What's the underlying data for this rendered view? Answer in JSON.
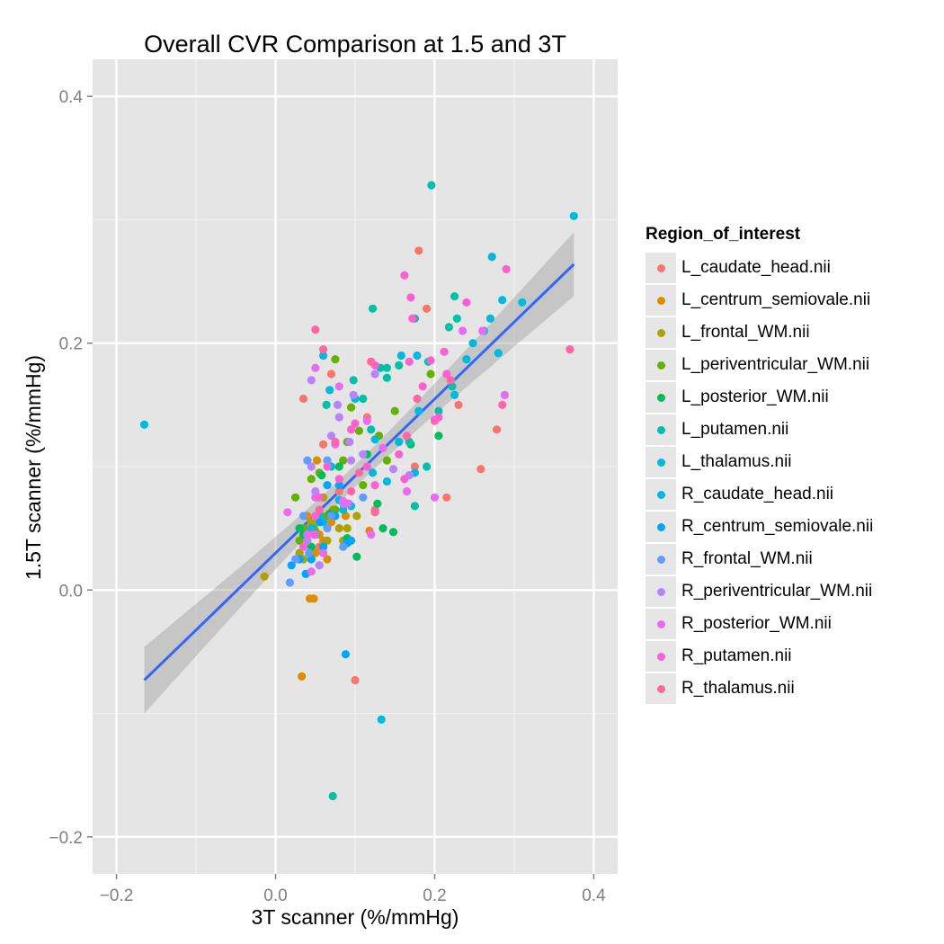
{
  "chart_data": {
    "type": "scatter",
    "title": "Overall CVR Comparison at 1.5 and 3T",
    "xlabel": "3T scanner (%/mmHg)",
    "ylabel": "1.5T scanner (%/mmHg)",
    "xlim": [
      -0.23,
      0.43
    ],
    "ylim": [
      -0.23,
      0.43
    ],
    "x_ticks": [
      -0.2,
      0.0,
      0.2,
      0.4
    ],
    "x_tick_labels": [
      "−0.2",
      "0.0",
      "0.2",
      "0.4"
    ],
    "y_ticks": [
      -0.2,
      0.0,
      0.2,
      0.4
    ],
    "y_tick_labels": [
      "−0.2",
      "0.0",
      "0.2",
      "0.4"
    ],
    "grid": true,
    "legend": {
      "title": "Region_of_interest",
      "position": "right"
    },
    "fit": {
      "method": "linear regression with confidence band",
      "x_range": [
        -0.165,
        0.375
      ],
      "line_y": [
        -0.073,
        0.264
      ],
      "band_low": [
        -0.1,
        0.238
      ],
      "band_high": [
        -0.046,
        0.29
      ],
      "color": "#3366FF"
    },
    "series": [
      {
        "name": "L_caudate_head.nii",
        "color": "#F8766D",
        "points": [
          [
            0.18,
            0.275
          ],
          [
            0.19,
            0.228
          ],
          [
            0.175,
            0.1
          ],
          [
            0.23,
            0.15
          ],
          [
            0.215,
            0.075
          ],
          [
            0.258,
            0.098
          ],
          [
            0.278,
            0.13
          ],
          [
            0.2,
            0.137
          ],
          [
            0.1,
            -0.073
          ],
          [
            0.07,
            0.175
          ],
          [
            0.06,
            0.118
          ],
          [
            0.035,
            0.155
          ],
          [
            0.115,
            0.14
          ],
          [
            0.125,
            0.065
          ],
          [
            0.042,
            0.05
          ],
          [
            0.08,
            0.08
          ],
          [
            0.055,
            0.035
          ]
        ]
      },
      {
        "name": "L_centrum_semiovale.nii",
        "color": "#DB8E00",
        "points": [
          [
            0.043,
            -0.007
          ],
          [
            0.048,
            -0.007
          ],
          [
            0.033,
            -0.07
          ],
          [
            0.055,
            0.045
          ],
          [
            0.06,
            0.04
          ],
          [
            0.05,
            0.03
          ],
          [
            0.07,
            0.055
          ],
          [
            0.088,
            0.06
          ],
          [
            0.118,
            0.048
          ],
          [
            0.04,
            0.06
          ],
          [
            0.065,
            0.025
          ],
          [
            0.052,
            0.105
          ]
        ]
      },
      {
        "name": "L_frontal_WM.nii",
        "color": "#AEA200",
        "points": [
          [
            -0.014,
            0.011
          ],
          [
            0.03,
            0.03
          ],
          [
            0.045,
            0.055
          ],
          [
            0.065,
            0.04
          ],
          [
            0.058,
            0.06
          ],
          [
            0.072,
            0.065
          ],
          [
            0.085,
            0.04
          ],
          [
            0.09,
            0.05
          ],
          [
            0.102,
            0.06
          ],
          [
            0.05,
            0.048
          ],
          [
            0.055,
            0.02
          ],
          [
            0.035,
            0.025
          ],
          [
            0.06,
            0.075
          ],
          [
            0.08,
            0.05
          ]
        ]
      },
      {
        "name": "L_periventricular_WM.nii",
        "color": "#64B200",
        "points": [
          [
            0.075,
            0.187
          ],
          [
            0.095,
            0.148
          ],
          [
            0.105,
            0.129
          ],
          [
            0.15,
            0.145
          ],
          [
            0.195,
            0.175
          ],
          [
            0.085,
            0.105
          ],
          [
            0.045,
            0.09
          ],
          [
            0.055,
            0.095
          ],
          [
            0.025,
            0.075
          ],
          [
            0.035,
            0.05
          ],
          [
            0.065,
            0.06
          ],
          [
            0.13,
            0.125
          ],
          [
            0.09,
            0.12
          ],
          [
            0.14,
            0.105
          ],
          [
            0.11,
            0.085
          ],
          [
            0.03,
            0.04
          ],
          [
            0.048,
            0.05
          ],
          [
            0.075,
            0.065
          ]
        ]
      },
      {
        "name": "L_posterior_WM.nii",
        "color": "#00BD5C",
        "points": [
          [
            0.03,
            0.05
          ],
          [
            0.058,
            0.093
          ],
          [
            0.102,
            0.027
          ],
          [
            0.135,
            0.05
          ],
          [
            0.148,
            0.047
          ],
          [
            0.128,
            0.07
          ],
          [
            0.09,
            0.042
          ],
          [
            0.068,
            0.062
          ],
          [
            0.205,
            0.125
          ],
          [
            0.17,
            0.118
          ],
          [
            0.08,
            0.1
          ],
          [
            0.045,
            0.035
          ],
          [
            0.035,
            0.045
          ],
          [
            0.115,
            0.11
          ]
        ]
      },
      {
        "name": "L_putamen.nii",
        "color": "#00C1A7",
        "points": [
          [
            0.196,
            0.328
          ],
          [
            0.072,
            -0.167
          ],
          [
            0.225,
            0.238
          ],
          [
            0.218,
            0.213
          ],
          [
            0.205,
            0.145
          ],
          [
            0.228,
            0.22
          ],
          [
            0.192,
            0.185
          ],
          [
            0.122,
            0.228
          ],
          [
            0.175,
            0.22
          ],
          [
            0.132,
            0.18
          ],
          [
            0.14,
            0.172
          ],
          [
            0.155,
            0.182
          ],
          [
            0.168,
            0.12
          ],
          [
            0.175,
            0.068
          ],
          [
            0.19,
            0.1
          ],
          [
            0.222,
            0.165
          ],
          [
            0.064,
            0.15
          ],
          [
            0.098,
            0.17
          ],
          [
            0.12,
            0.13
          ],
          [
            0.14,
            0.18
          ],
          [
            0.11,
            0.155
          ]
        ]
      },
      {
        "name": "L_thalamus.nii",
        "color": "#00BADE",
        "points": [
          [
            0.375,
            0.303
          ],
          [
            0.272,
            0.27
          ],
          [
            0.31,
            0.233
          ],
          [
            0.285,
            0.235
          ],
          [
            0.27,
            0.22
          ],
          [
            0.262,
            0.21
          ],
          [
            0.248,
            0.2
          ],
          [
            0.24,
            0.187
          ],
          [
            0.28,
            0.192
          ],
          [
            0.225,
            0.158
          ],
          [
            0.178,
            0.19
          ],
          [
            0.158,
            0.19
          ],
          [
            0.06,
            0.19
          ],
          [
            0.125,
            0.122
          ],
          [
            0.18,
            0.145
          ],
          [
            0.175,
            0.095
          ],
          [
            0.155,
            0.12
          ],
          [
            0.06,
            0.055
          ],
          [
            0.04,
            0.04
          ],
          [
            0.085,
            0.065
          ]
        ]
      },
      {
        "name": "R_caudate_head.nii",
        "color": "#00BADE",
        "points": [
          [
            -0.165,
            0.134
          ],
          [
            0.133,
            -0.105
          ],
          [
            0.068,
            0.162
          ],
          [
            0.1,
            0.155
          ],
          [
            0.122,
            0.095
          ],
          [
            0.07,
            0.1
          ],
          [
            0.055,
            0.06
          ],
          [
            0.08,
            0.073
          ],
          [
            0.045,
            0.05
          ],
          [
            0.06,
            0.035
          ],
          [
            0.14,
            0.088
          ],
          [
            0.095,
            0.068
          ]
        ]
      },
      {
        "name": "R_centrum_semiovale.nii",
        "color": "#00A5FF",
        "points": [
          [
            0.088,
            -0.052
          ],
          [
            0.02,
            0.02
          ],
          [
            0.038,
            0.013
          ],
          [
            0.045,
            0.025
          ],
          [
            0.03,
            0.025
          ],
          [
            0.06,
            0.035
          ],
          [
            0.075,
            0.06
          ],
          [
            0.09,
            0.038
          ],
          [
            0.055,
            0.055
          ],
          [
            0.095,
            0.04
          ],
          [
            0.08,
            0.085
          ],
          [
            0.065,
            0.085
          ]
        ]
      },
      {
        "name": "R_frontal_WM.nii",
        "color": "#619CFF",
        "points": [
          [
            0.018,
            0.006
          ],
          [
            0.025,
            0.025
          ],
          [
            0.042,
            0.03
          ],
          [
            0.05,
            0.045
          ],
          [
            0.065,
            0.05
          ],
          [
            0.07,
            0.06
          ],
          [
            0.085,
            0.035
          ],
          [
            0.092,
            0.07
          ],
          [
            0.065,
            0.105
          ],
          [
            0.04,
            0.105
          ],
          [
            0.035,
            0.06
          ],
          [
            0.11,
            0.075
          ]
        ]
      },
      {
        "name": "R_periventricular_WM.nii",
        "color": "#B983FF",
        "points": [
          [
            0.045,
            0.17
          ],
          [
            0.078,
            0.15
          ],
          [
            0.08,
            0.14
          ],
          [
            0.098,
            0.158
          ],
          [
            0.125,
            0.175
          ],
          [
            0.148,
            0.098
          ],
          [
            0.168,
            0.093
          ],
          [
            0.093,
            0.12
          ],
          [
            0.11,
            0.11
          ],
          [
            0.07,
            0.125
          ],
          [
            0.05,
            0.08
          ],
          [
            0.085,
            0.07
          ],
          [
            0.04,
            0.04
          ],
          [
            0.055,
            0.02
          ],
          [
            0.045,
            0.1
          ],
          [
            0.095,
            0.105
          ]
        ]
      },
      {
        "name": "R_posterior_WM.nii",
        "color": "#E76BF3",
        "points": [
          [
            0.015,
            0.063
          ],
          [
            0.05,
            0.18
          ],
          [
            0.08,
            0.165
          ],
          [
            0.165,
            0.08
          ],
          [
            0.2,
            0.075
          ],
          [
            0.235,
            0.21
          ],
          [
            0.26,
            0.21
          ],
          [
            0.288,
            0.158
          ],
          [
            0.075,
            0.118
          ],
          [
            0.115,
            0.137
          ],
          [
            0.05,
            0.075
          ],
          [
            0.04,
            0.045
          ],
          [
            0.045,
            0.015
          ],
          [
            0.085,
            0.072
          ],
          [
            0.09,
            0.07
          ],
          [
            0.135,
            0.115
          ],
          [
            0.12,
            0.045
          ],
          [
            0.06,
            0.03
          ]
        ]
      },
      {
        "name": "R_putamen.nii",
        "color": "#FD61D1",
        "points": [
          [
            0.162,
            0.255
          ],
          [
            0.17,
            0.237
          ],
          [
            0.172,
            0.22
          ],
          [
            0.29,
            0.26
          ],
          [
            0.24,
            0.233
          ],
          [
            0.212,
            0.193
          ],
          [
            0.195,
            0.186
          ],
          [
            0.168,
            0.185
          ],
          [
            0.125,
            0.182
          ],
          [
            0.1,
            0.135
          ],
          [
            0.095,
            0.13
          ],
          [
            0.185,
            0.165
          ],
          [
            0.215,
            0.175
          ],
          [
            0.2,
            0.138
          ],
          [
            0.205,
            0.14
          ],
          [
            0.162,
            0.09
          ],
          [
            0.155,
            0.11
          ],
          [
            0.125,
            0.085
          ],
          [
            0.115,
            0.1
          ],
          [
            0.065,
            0.1
          ],
          [
            0.08,
            0.09
          ],
          [
            0.055,
            0.075
          ],
          [
            0.05,
            0.06
          ],
          [
            0.035,
            0.035
          ],
          [
            0.048,
            0.045
          ]
        ]
      },
      {
        "name": "R_thalamus.nii",
        "color": "#FF67A4",
        "points": [
          [
            0.37,
            0.195
          ],
          [
            0.285,
            0.15
          ],
          [
            0.05,
            0.211
          ],
          [
            0.06,
            0.195
          ],
          [
            0.12,
            0.185
          ],
          [
            0.178,
            0.155
          ],
          [
            0.22,
            0.17
          ],
          [
            0.165,
            0.125
          ],
          [
            0.105,
            0.095
          ],
          [
            0.125,
            0.063
          ],
          [
            0.075,
            0.12
          ],
          [
            0.095,
            0.08
          ],
          [
            0.055,
            0.065
          ]
        ]
      }
    ]
  }
}
